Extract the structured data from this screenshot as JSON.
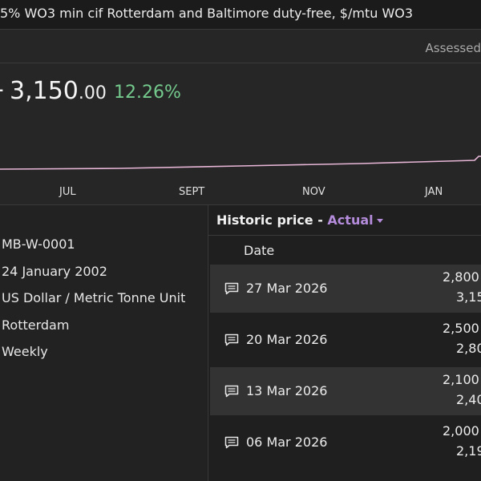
{
  "header": {
    "title": "5% WO3 min cif Rotterdam and Baltimore duty-free, $/mtu WO3",
    "assessed_label": "Assessed"
  },
  "price": {
    "prefix": "-",
    "value": "3,150",
    "cents": ".00",
    "change": "12.26%"
  },
  "chart": {
    "months": [
      "JUL",
      "SEPT",
      "NOV",
      "JAN"
    ],
    "line_color": "#e7b6d6",
    "accent_color": "#74c98d"
  },
  "details": {
    "code": "MB-W-0001",
    "launch_date": "24 January 2002",
    "unit": "US Dollar / Metric Tonne Unit",
    "location": "Rotterdam",
    "frequency": "Weekly"
  },
  "history": {
    "label": "Historic price -",
    "select_value": "Actual",
    "date_header": "Date",
    "rows": [
      {
        "date": "27 Mar 2026",
        "v1": "2,800",
        "v2": "3,15"
      },
      {
        "date": "20 Mar 2026",
        "v1": "2,500",
        "v2": "2,80"
      },
      {
        "date": "13 Mar 2026",
        "v1": "2,100",
        "v2": "2,40"
      },
      {
        "date": "06 Mar 2026",
        "v1": "2,000",
        "v2": "2,19"
      }
    ]
  }
}
